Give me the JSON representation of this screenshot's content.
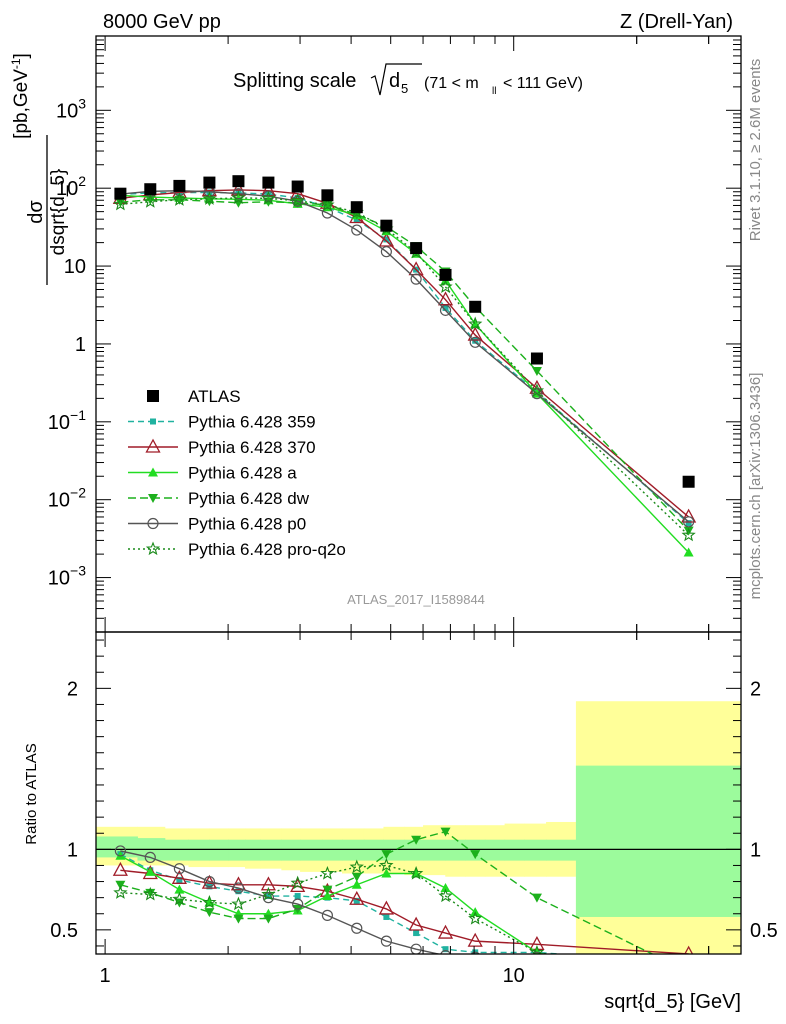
{
  "header": {
    "left": "8000 GeV pp",
    "right": "Z (Drell-Yan)"
  },
  "side_texts": {
    "rivet": "Rivet 3.1.10, ≥ 2.6M events",
    "mcplots": "mcplots.cern.ch [arXiv:1306.3436]"
  },
  "chart_data": {
    "type": "line",
    "title": {
      "prefix": "Splitting scale",
      "symbol": "d",
      "subscript": "5",
      "range_open": "(71 < m",
      "range_sub": "ll",
      "range_close": "< 111 GeV)"
    },
    "analysis_label": "ATLAS_2017_I1589844",
    "xlabel": "sqrt{d_5} [GeV]",
    "xscale": "log",
    "xlim": [
      0.95,
      36
    ],
    "x_tick_labels": [
      "1",
      "10"
    ],
    "main_panel": {
      "ylabel": "dσ / dsqrt{d_5} [pb,GeV⁻¹]",
      "yscale": "log",
      "ylim": [
        0.0002,
        9000
      ],
      "y_tick_labels": [
        "10⁻³",
        "10⁻²",
        "10⁻¹",
        "1",
        "10",
        "10²",
        "10³"
      ]
    },
    "ratio_panel": {
      "ylabel": "Ratio to ATLAS",
      "ylim": [
        0.35,
        2.35
      ],
      "y_tick_labels": [
        "0.5",
        "1",
        "2"
      ],
      "bands": {
        "edges": [
          0.95,
          1.2,
          1.4,
          1.6,
          1.8,
          2.0,
          2.2,
          2.4,
          2.7,
          3.0,
          3.4,
          3.8,
          4.3,
          4.8,
          5.4,
          6.0,
          6.8,
          7.6,
          8.5,
          9.5,
          10.6,
          12.0,
          14.2,
          36
        ],
        "inner_hi": [
          1.08,
          1.07,
          1.06,
          1.06,
          1.06,
          1.06,
          1.06,
          1.06,
          1.06,
          1.06,
          1.06,
          1.06,
          1.06,
          1.06,
          1.06,
          1.06,
          1.06,
          1.06,
          1.06,
          1.06,
          1.06,
          1.06,
          1.52
        ],
        "inner_lo": [
          0.95,
          0.93,
          0.93,
          0.93,
          0.93,
          0.93,
          0.93,
          0.93,
          0.93,
          0.93,
          0.93,
          0.93,
          0.93,
          0.93,
          0.93,
          0.93,
          0.93,
          0.93,
          0.93,
          0.93,
          0.93,
          0.93,
          0.58
        ],
        "outer_hi": [
          1.14,
          1.14,
          1.13,
          1.13,
          1.13,
          1.13,
          1.13,
          1.13,
          1.13,
          1.13,
          1.13,
          1.13,
          1.13,
          1.14,
          1.14,
          1.15,
          1.15,
          1.15,
          1.15,
          1.16,
          1.16,
          1.17,
          1.92
        ],
        "outer_lo": [
          0.9,
          0.9,
          0.9,
          0.89,
          0.89,
          0.89,
          0.88,
          0.88,
          0.87,
          0.86,
          0.86,
          0.85,
          0.85,
          0.85,
          0.84,
          0.84,
          0.83,
          0.83,
          0.83,
          0.83,
          0.83,
          0.83,
          0.35
        ],
        "inner_color": "#9cfb9c",
        "outer_color": "#ffff99"
      }
    },
    "x": [
      1.09,
      1.29,
      1.52,
      1.8,
      2.12,
      2.51,
      2.96,
      3.5,
      4.13,
      4.88,
      5.77,
      6.81,
      8.05,
      11.4,
      26.8
    ],
    "data": {
      "name": "ATLAS",
      "color": "#000000",
      "marker": "square",
      "values": [
        85,
        97,
        107,
        118,
        123,
        118,
        105,
        81,
        57,
        33,
        17,
        7.7,
        3.0,
        0.65,
        0.017
      ]
    },
    "series": [
      {
        "name": "Pythia 6.428 359",
        "color": "#20b2a0",
        "marker": "square-small",
        "dash": "6,4",
        "values": [
          83,
          87,
          88,
          88,
          87,
          84,
          75,
          57,
          39,
          22,
          9.0,
          2.9,
          1.1,
          0.24,
          0.005
        ],
        "ratio": [
          0.97,
          0.87,
          0.81,
          0.77,
          0.74,
          0.71,
          0.71,
          0.7,
          0.68,
          0.58,
          0.48,
          0.38,
          0.36,
          0.36,
          0.29
        ]
      },
      {
        "name": "Pythia 6.428 370",
        "color": "#a01c28",
        "marker": "triangle-open",
        "dash": "",
        "values": [
          74,
          82,
          88,
          93,
          95,
          93,
          85,
          64,
          42,
          21,
          9.0,
          3.7,
          1.3,
          0.27,
          0.006
        ],
        "ratio": [
          0.87,
          0.85,
          0.82,
          0.79,
          0.78,
          0.78,
          0.77,
          0.74,
          0.69,
          0.63,
          0.53,
          0.48,
          0.43,
          0.41,
          0.35
        ]
      },
      {
        "name": "Pythia 6.428 a",
        "color": "#22dd22",
        "marker": "triangle",
        "dash": "",
        "values": [
          81,
          77,
          75,
          73,
          72,
          70,
          63,
          57,
          45,
          28,
          14.4,
          6.5,
          1.8,
          0.23,
          0.0021
        ],
        "ratio": [
          0.96,
          0.86,
          0.75,
          0.67,
          0.6,
          0.6,
          0.62,
          0.71,
          0.78,
          0.85,
          0.85,
          0.76,
          0.61,
          0.36,
          0.13
        ]
      },
      {
        "name": "Pythia 6.428 dw",
        "color": "#1cb01c",
        "marker": "triangle-down",
        "dash": "8,4",
        "values": [
          66,
          71,
          71,
          68,
          65,
          67,
          65,
          61,
          46,
          32,
          18,
          8.5,
          3.0,
          0.45,
          0.004
        ],
        "ratio": [
          0.78,
          0.73,
          0.67,
          0.61,
          0.57,
          0.57,
          0.63,
          0.75,
          0.83,
          0.97,
          1.06,
          1.11,
          0.97,
          0.7,
          0.24
        ]
      },
      {
        "name": "Pythia 6.428 p0",
        "color": "#555555",
        "marker": "circle-open",
        "dash": "",
        "values": [
          84,
          91,
          93,
          90,
          85,
          79,
          68,
          48,
          29,
          15.3,
          6.8,
          2.7,
          1.05,
          0.23,
          0.0052
        ],
        "ratio": [
          0.99,
          0.95,
          0.88,
          0.8,
          0.76,
          0.7,
          0.66,
          0.59,
          0.51,
          0.43,
          0.38,
          0.34,
          0.33,
          0.33,
          0.31
        ]
      },
      {
        "name": "Pythia 6.428 pro-q2o",
        "color": "#1a8a1a",
        "marker": "star-open",
        "dash": "2,3",
        "values": [
          62,
          67,
          71,
          73,
          75,
          74,
          69,
          61,
          49,
          30,
          15,
          5.4,
          1.8,
          0.25,
          0.0035
        ],
        "ratio": [
          0.73,
          0.72,
          0.69,
          0.67,
          0.66,
          0.72,
          0.79,
          0.85,
          0.89,
          0.9,
          0.85,
          0.71,
          0.57,
          0.36,
          0.21
        ]
      }
    ]
  }
}
